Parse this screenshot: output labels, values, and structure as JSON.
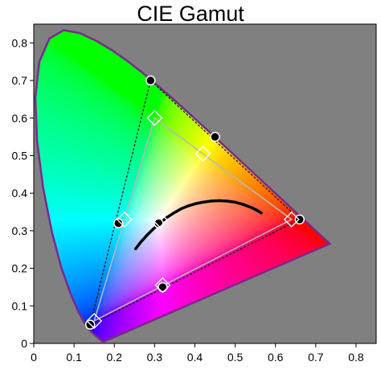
{
  "chart_data": {
    "type": "scatter",
    "title": "CIE Gamut",
    "xlabel": "",
    "ylabel": "",
    "xlim": [
      0,
      0.85
    ],
    "ylim": [
      0,
      0.85
    ],
    "x_ticks": [
      "0",
      "0.1",
      "0.2",
      "0.3",
      "0.4",
      "0.5",
      "0.6",
      "0.7",
      "0.8"
    ],
    "y_ticks": [
      "0",
      "0.1",
      "0.2",
      "0.3",
      "0.4",
      "0.5",
      "0.6",
      "0.7",
      "0.8"
    ],
    "grid": false,
    "colors": {
      "plot_background": "#808080",
      "locus_outline": "#7a2a8a",
      "reference_gamut": "#1a1a1a",
      "measured_gamut": "#b8b8b8",
      "blackbody_curve": "#000000"
    },
    "spectral_locus": [
      [
        0.1741,
        0.005
      ],
      [
        0.1738,
        0.0049
      ],
      [
        0.173,
        0.0048
      ],
      [
        0.1721,
        0.0048
      ],
      [
        0.1703,
        0.0058
      ],
      [
        0.1669,
        0.0086
      ],
      [
        0.1611,
        0.0138
      ],
      [
        0.1566,
        0.0177
      ],
      [
        0.151,
        0.0227
      ],
      [
        0.144,
        0.0297
      ],
      [
        0.1355,
        0.0399
      ],
      [
        0.1241,
        0.0578
      ],
      [
        0.1096,
        0.0868
      ],
      [
        0.0913,
        0.1327
      ],
      [
        0.0687,
        0.2007
      ],
      [
        0.0454,
        0.295
      ],
      [
        0.0235,
        0.4127
      ],
      [
        0.0082,
        0.5384
      ],
      [
        0.0039,
        0.6548
      ],
      [
        0.0139,
        0.7502
      ],
      [
        0.0389,
        0.812
      ],
      [
        0.0743,
        0.8338
      ],
      [
        0.1142,
        0.8262
      ],
      [
        0.1547,
        0.8059
      ],
      [
        0.1929,
        0.7816
      ],
      [
        0.2296,
        0.7543
      ],
      [
        0.2658,
        0.7243
      ],
      [
        0.3016,
        0.6923
      ],
      [
        0.3373,
        0.6589
      ],
      [
        0.3731,
        0.6245
      ],
      [
        0.4087,
        0.5896
      ],
      [
        0.4441,
        0.5547
      ],
      [
        0.4788,
        0.5202
      ],
      [
        0.5125,
        0.4866
      ],
      [
        0.5448,
        0.4544
      ],
      [
        0.5752,
        0.4242
      ],
      [
        0.6029,
        0.3965
      ],
      [
        0.627,
        0.3725
      ],
      [
        0.6482,
        0.3514
      ],
      [
        0.6658,
        0.334
      ],
      [
        0.6801,
        0.3197
      ],
      [
        0.6915,
        0.3083
      ],
      [
        0.7006,
        0.2993
      ],
      [
        0.7079,
        0.292
      ],
      [
        0.714,
        0.2859
      ],
      [
        0.719,
        0.2809
      ],
      [
        0.723,
        0.277
      ],
      [
        0.726,
        0.274
      ],
      [
        0.7283,
        0.2717
      ],
      [
        0.73,
        0.27
      ],
      [
        0.7311,
        0.2689
      ],
      [
        0.732,
        0.268
      ],
      [
        0.7327,
        0.2673
      ],
      [
        0.7334,
        0.2666
      ],
      [
        0.734,
        0.266
      ],
      [
        0.7344,
        0.2656
      ],
      [
        0.7346,
        0.2654
      ],
      [
        0.7347,
        0.2653
      ]
    ],
    "series": [
      {
        "name": "",
        "marker": "circle",
        "points": [
          [
            0.14,
            0.05
          ],
          [
            0.29,
            0.7
          ],
          [
            0.45,
            0.55
          ],
          [
            0.66,
            0.33
          ],
          [
            0.32,
            0.15
          ],
          [
            0.21,
            0.32
          ],
          [
            0.31,
            0.32
          ]
        ]
      },
      {
        "name": "",
        "marker": "diamond",
        "points": [
          [
            0.15,
            0.06
          ],
          [
            0.3,
            0.6
          ],
          [
            0.42,
            0.505
          ],
          [
            0.64,
            0.33
          ],
          [
            0.32,
            0.155
          ],
          [
            0.225,
            0.33
          ],
          [
            0.313,
            0.329
          ]
        ]
      }
    ],
    "reference_gamut": [
      [
        0.64,
        0.33
      ],
      [
        0.3,
        0.6
      ],
      [
        0.15,
        0.06
      ]
    ],
    "reference_gamut_outer": [
      [
        0.66,
        0.33
      ],
      [
        0.29,
        0.7
      ],
      [
        0.14,
        0.05
      ]
    ],
    "blackbody_curve": [
      [
        0.253,
        0.252
      ],
      [
        0.265,
        0.269
      ],
      [
        0.281,
        0.288
      ],
      [
        0.297,
        0.305
      ],
      [
        0.313,
        0.32
      ],
      [
        0.33,
        0.335
      ],
      [
        0.347,
        0.347
      ],
      [
        0.365,
        0.358
      ],
      [
        0.383,
        0.366
      ],
      [
        0.402,
        0.372
      ],
      [
        0.42,
        0.376
      ],
      [
        0.44,
        0.379
      ],
      [
        0.46,
        0.38
      ],
      [
        0.48,
        0.379
      ],
      [
        0.5,
        0.376
      ],
      [
        0.52,
        0.37
      ],
      [
        0.54,
        0.362
      ],
      [
        0.555,
        0.354
      ],
      [
        0.565,
        0.347
      ]
    ]
  }
}
